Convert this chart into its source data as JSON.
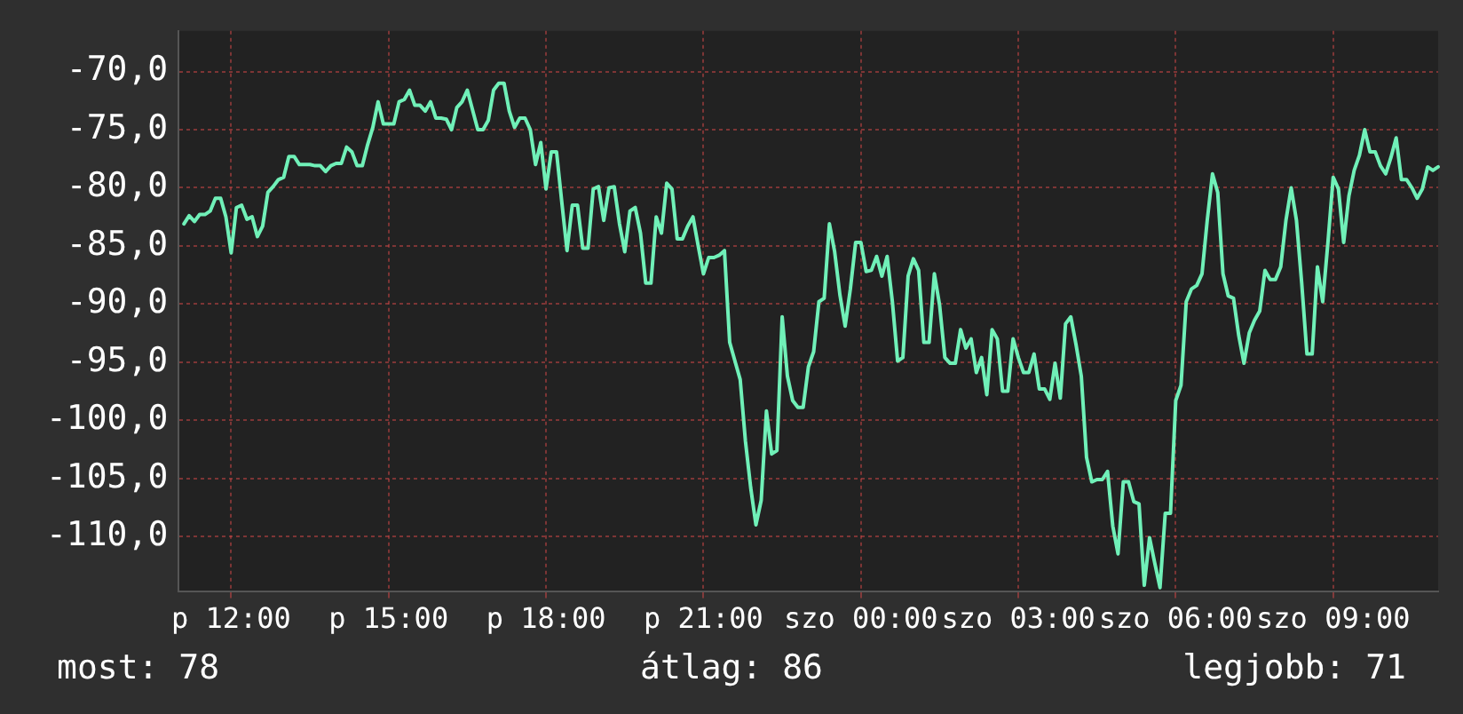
{
  "chart_data": {
    "type": "line",
    "ylim": [
      -114.7,
      -66.5
    ],
    "categories": [
      null,
      null,
      null,
      null,
      null,
      null,
      null,
      null,
      null,
      null,
      "p 12:00",
      null,
      null,
      null,
      null,
      null,
      null,
      null,
      null,
      null,
      null,
      null,
      null,
      null,
      null,
      null,
      null,
      null,
      null,
      null,
      null,
      null,
      null,
      null,
      null,
      null,
      null,
      null,
      null,
      null,
      "p 15:00",
      null,
      null,
      null,
      null,
      null,
      null,
      null,
      null,
      null,
      null,
      null,
      null,
      null,
      null,
      null,
      null,
      null,
      null,
      null,
      null,
      null,
      null,
      null,
      null,
      null,
      null,
      null,
      null,
      null,
      "p 18:00",
      null,
      null,
      null,
      null,
      null,
      null,
      null,
      null,
      null,
      null,
      null,
      null,
      null,
      null,
      null,
      null,
      null,
      null,
      null,
      null,
      null,
      null,
      null,
      null,
      null,
      null,
      null,
      null,
      null,
      "p 21:00",
      null,
      null,
      null,
      null,
      null,
      null,
      null,
      null,
      null,
      null,
      null,
      null,
      null,
      null,
      null,
      null,
      null,
      null,
      null,
      null,
      null,
      null,
      null,
      null,
      null,
      null,
      null,
      null,
      null,
      "szo 00:00",
      null,
      null,
      null,
      null,
      null,
      null,
      null,
      null,
      null,
      null,
      null,
      null,
      null,
      null,
      null,
      null,
      null,
      null,
      null,
      null,
      null,
      null,
      null,
      null,
      null,
      null,
      null,
      null,
      null,
      "szo 03:00",
      null,
      null,
      null,
      null,
      null,
      null,
      null,
      null,
      null,
      null,
      null,
      null,
      null,
      null,
      null,
      null,
      null,
      null,
      null,
      null,
      null,
      null,
      null,
      null,
      null,
      null,
      null,
      null,
      null,
      "szo 06:00",
      null,
      null,
      null,
      null,
      null,
      null,
      null,
      null,
      null,
      null,
      null,
      null,
      null,
      null,
      null,
      null,
      null,
      null,
      null,
      null,
      null,
      null,
      null,
      null,
      null,
      null,
      null,
      null,
      null,
      "szo 09:00",
      null,
      null,
      null,
      null,
      null,
      null,
      null,
      null,
      null,
      null,
      null,
      null,
      null,
      null,
      null,
      null,
      null,
      null,
      null,
      null
    ],
    "yticks": [
      {
        "value": -110,
        "label": "-110,0"
      },
      {
        "value": -105,
        "label": "-105,0"
      },
      {
        "value": -100,
        "label": "-100,0"
      },
      {
        "value": -95,
        "label": "-95,0"
      },
      {
        "value": -90,
        "label": "-90,0"
      },
      {
        "value": -85,
        "label": "-85,0"
      },
      {
        "value": -80,
        "label": "-80,0"
      },
      {
        "value": -75,
        "label": "-75,0"
      },
      {
        "value": -70,
        "label": "-70,0"
      }
    ],
    "grid": true,
    "legend": false,
    "marker": "none",
    "line_style": "solid",
    "annotations": [
      "most: 78",
      "átlag: 86",
      "legjobb: 71"
    ],
    "series": [
      {
        "color": "#70f0b8",
        "values": [
          null,
          -83.1,
          -82.4,
          -82.9,
          -82.3,
          -82.3,
          -82.0,
          -80.9,
          -80.9,
          -82.5,
          -85.6,
          -81.7,
          -81.5,
          -82.7,
          -82.5,
          -84.2,
          -83.3,
          -80.4,
          -79.9,
          -79.3,
          -79.1,
          -77.3,
          -77.3,
          -78.0,
          -78.0,
          -78.0,
          -78.1,
          -78.1,
          -78.6,
          -78.1,
          -77.9,
          -77.9,
          -76.5,
          -76.9,
          -78.1,
          -78.1,
          -76.3,
          -74.8,
          -72.6,
          -74.5,
          -74.5,
          -74.5,
          -72.6,
          -72.4,
          -71.6,
          -72.9,
          -72.9,
          -73.4,
          -72.6,
          -74.0,
          -74.0,
          -74.1,
          -75.0,
          -73.1,
          -72.6,
          -71.6,
          -73.3,
          -75.0,
          -75.0,
          -74.2,
          -71.6,
          -71.0,
          -71.0,
          -73.4,
          -74.8,
          -74.0,
          -74.0,
          -75.0,
          -78.0,
          -76.1,
          -80.1,
          -76.9,
          -76.9,
          -81.2,
          -85.4,
          -81.5,
          -81.5,
          -85.2,
          -85.2,
          -80.1,
          -79.9,
          -82.8,
          -80.0,
          -79.9,
          -83.1,
          -85.5,
          -82.0,
          -81.7,
          -83.9,
          -88.2,
          -88.2,
          -82.5,
          -83.9,
          -79.6,
          -80.1,
          -84.4,
          -84.4,
          -83.3,
          -82.5,
          -85.0,
          -87.4,
          -86.0,
          -86.0,
          -85.8,
          -85.4,
          -93.3,
          -94.9,
          -96.5,
          -101.8,
          -105.8,
          -109.0,
          -106.9,
          -99.2,
          -102.9,
          -102.6,
          -91.1,
          -96.2,
          -98.3,
          -98.9,
          -98.9,
          -95.4,
          -94.1,
          -89.8,
          -89.5,
          -83.1,
          -85.5,
          -89.2,
          -91.9,
          -88.7,
          -84.7,
          -84.7,
          -87.2,
          -87.1,
          -85.9,
          -87.6,
          -85.9,
          -89.8,
          -94.9,
          -94.6,
          -87.6,
          -86.1,
          -87.1,
          -93.3,
          -93.3,
          -87.4,
          -90.1,
          -94.6,
          -95.1,
          -95.1,
          -92.2,
          -93.8,
          -93.0,
          -95.9,
          -94.6,
          -97.8,
          -92.2,
          -93.0,
          -97.5,
          -97.5,
          -93.0,
          -94.6,
          -95.9,
          -95.9,
          -94.3,
          -97.3,
          -97.3,
          -98.2,
          -95.1,
          -98.1,
          -91.7,
          -91.1,
          -93.5,
          -96.2,
          -103.2,
          -105.3,
          -105.1,
          -105.1,
          -104.4,
          -109.1,
          -111.5,
          -105.3,
          -105.3,
          -107.0,
          -107.2,
          -114.2,
          -110.1,
          -112.3,
          -114.4,
          -108.0,
          -108.0,
          -98.3,
          -97.0,
          -89.8,
          -88.7,
          -88.4,
          -87.4,
          -82.8,
          -78.8,
          -80.4,
          -87.4,
          -89.3,
          -89.5,
          -92.7,
          -95.1,
          -92.5,
          -91.4,
          -90.6,
          -87.1,
          -87.9,
          -87.9,
          -86.8,
          -82.8,
          -80.0,
          -82.8,
          -88.2,
          -94.3,
          -94.3,
          -86.8,
          -89.8,
          -84.7,
          -79.1,
          -80.1,
          -84.7,
          -80.7,
          -78.5,
          -77.2,
          -75.0,
          -76.9,
          -76.9,
          -78.1,
          -78.8,
          -77.4,
          -75.7,
          -79.3,
          -79.3,
          -80.0,
          -80.9,
          -80.1,
          -78.2,
          -78.5,
          -78.2
        ]
      }
    ]
  }
}
